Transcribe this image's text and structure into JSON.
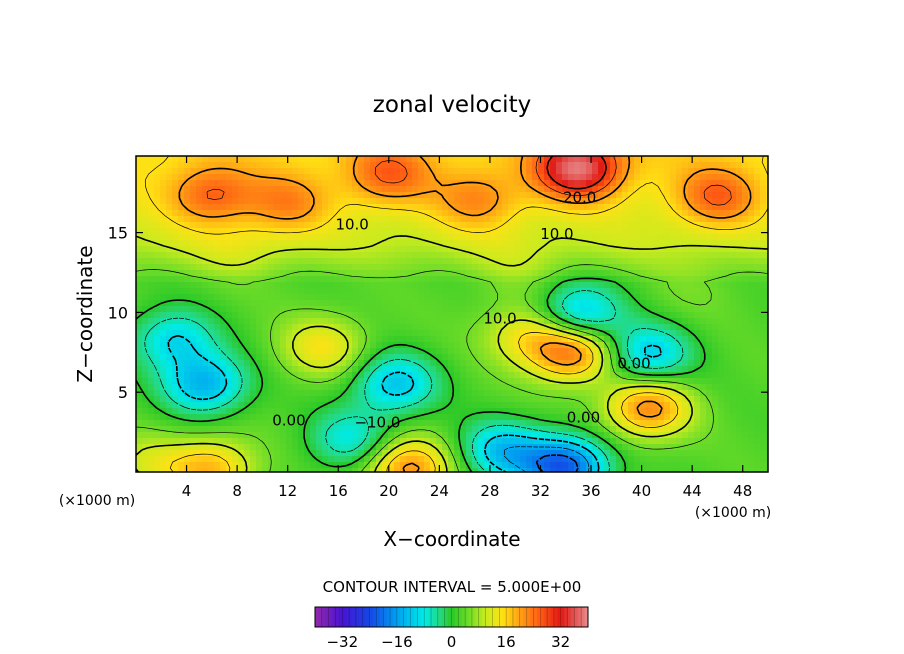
{
  "chart_data": {
    "type": "heatmap",
    "title": "zonal velocity",
    "xlabel": "X−coordinate",
    "ylabel": "Z−coordinate",
    "x_unit_left": "(×1000 m)",
    "x_unit_right": "(×1000 m)",
    "xlim": [
      0,
      50
    ],
    "ylim": [
      0,
      19.8
    ],
    "x_ticks": [
      4,
      8,
      12,
      16,
      20,
      24,
      28,
      32,
      36,
      40,
      44,
      48
    ],
    "x_tick_labels": [
      "4",
      "8",
      "12",
      "16",
      "20",
      "24",
      "28",
      "32",
      "36",
      "40",
      "44",
      "48"
    ],
    "y_ticks": [
      5,
      10,
      15
    ],
    "y_tick_labels": [
      "5",
      "10",
      "15"
    ],
    "contour_interval_label": "CONTOUR INTERVAL = 5.000E+00",
    "contour_labels": [
      {
        "text": "10.0",
        "x": 17.1,
        "z": 15.2
      },
      {
        "text": "20.0",
        "x": 35.1,
        "z": 16.9
      },
      {
        "text": "10.0",
        "x": 33.3,
        "z": 14.6
      },
      {
        "text": "10.0",
        "x": 28.8,
        "z": 9.3
      },
      {
        "text": "0.00",
        "x": 39.4,
        "z": 6.5
      },
      {
        "text": "0.00",
        "x": 12.1,
        "z": 2.9
      },
      {
        "text": "−10.0",
        "x": 19.1,
        "z": 2.8
      },
      {
        "text": "0.00",
        "x": 35.4,
        "z": 3.1
      }
    ],
    "features": [
      {
        "x": 35,
        "z": 19.0,
        "value": 28
      },
      {
        "x": 20,
        "z": 18.6,
        "value": 15
      },
      {
        "x": 6,
        "z": 17.3,
        "value": 16
      },
      {
        "x": 46,
        "z": 17.2,
        "value": 16
      },
      {
        "x": 12,
        "z": 16.8,
        "value": 13
      },
      {
        "x": 27,
        "z": 17.0,
        "value": 13
      },
      {
        "x": 34.5,
        "z": 7.5,
        "value": 24
      },
      {
        "x": 31,
        "z": 8.6,
        "value": 14
      },
      {
        "x": 40.5,
        "z": 4.0,
        "value": 22
      },
      {
        "x": 14.8,
        "z": 7.8,
        "value": 14
      },
      {
        "x": 5.5,
        "z": 5.5,
        "value": -14
      },
      {
        "x": 3,
        "z": 8.3,
        "value": -10
      },
      {
        "x": 20.5,
        "z": 5.5,
        "value": -12
      },
      {
        "x": 17,
        "z": 2.0,
        "value": -8
      },
      {
        "x": 35,
        "z": 9.8,
        "value": -14
      },
      {
        "x": 40.5,
        "z": 7.3,
        "value": -12
      },
      {
        "x": 34,
        "z": 0.3,
        "value": -22
      },
      {
        "x": 29,
        "z": 1.3,
        "value": -12
      },
      {
        "x": 21.5,
        "z": 0.2,
        "value": 22
      },
      {
        "x": 6,
        "z": 0.2,
        "value": 18
      },
      {
        "x": 1,
        "z": 0.5,
        "value": 10
      },
      {
        "x": 44,
        "z": 11.5,
        "value": 5
      },
      {
        "x": 8,
        "z": 13.5,
        "value": 6
      },
      {
        "x": 30,
        "z": 12.5,
        "value": 6
      }
    ],
    "colorbar": {
      "range": [
        -40,
        40
      ],
      "ticks": [
        -32,
        -16,
        0,
        16,
        32
      ],
      "tick_labels": [
        "−32",
        "−16",
        "0",
        "16",
        "32"
      ]
    }
  }
}
